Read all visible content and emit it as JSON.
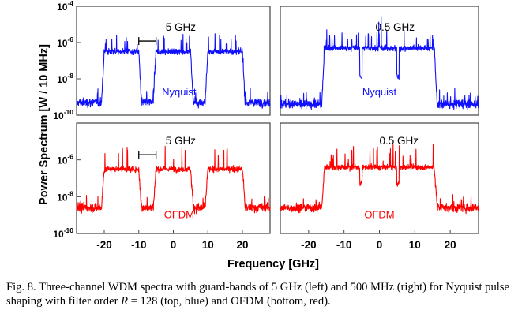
{
  "figure": {
    "ylabel": "Power Spectrum [W / 10 MHz]",
    "xlabel": "Frequency [GHz]",
    "ytick_labels": [
      {
        "base": "10",
        "exp": "-4"
      },
      {
        "base": "10",
        "exp": "-6"
      },
      {
        "base": "10",
        "exp": "-8"
      },
      {
        "base": "10",
        "exp": "-10"
      }
    ],
    "xtick_labels": [
      "-20",
      "-10",
      "0",
      "10",
      "20"
    ]
  },
  "chart_data": [
    {
      "type": "line",
      "panel": "top-left",
      "color": "#1010ff",
      "label": "Nyquist",
      "guard_annotation": "5 GHz",
      "guard_band_ghz": 5,
      "xlim": [
        -28,
        28
      ],
      "ylim_log10": [
        -10,
        -4
      ],
      "yscale": "log",
      "channel_centers_ghz": [
        -15,
        0,
        15
      ],
      "channel_width_ghz": 10,
      "in_band_level_log10": -6.5,
      "noise_floor_log10": -9.3
    },
    {
      "type": "line",
      "panel": "top-right",
      "color": "#1010ff",
      "label": "Nyquist",
      "guard_annotation": "0.5 GHz",
      "guard_band_ghz": 0.5,
      "xlim": [
        -28,
        28
      ],
      "ylim_log10": [
        -10,
        -4
      ],
      "yscale": "log",
      "channel_centers_ghz": [
        -10.5,
        0,
        10.5
      ],
      "channel_width_ghz": 10,
      "in_band_level_log10": -6.3,
      "noise_floor_log10": -9.4
    },
    {
      "type": "line",
      "panel": "bottom-left",
      "color": "#ff0000",
      "label": "OFDM",
      "guard_annotation": "5 GHz",
      "guard_band_ghz": 5,
      "xlim": [
        -28,
        28
      ],
      "ylim_log10": [
        -10,
        -4
      ],
      "yscale": "log",
      "channel_centers_ghz": [
        -15,
        0,
        15
      ],
      "channel_width_ghz": 10,
      "in_band_level_log10": -6.5,
      "noise_floor_log10": -8.6
    },
    {
      "type": "line",
      "panel": "bottom-right",
      "color": "#ff0000",
      "label": "OFDM",
      "guard_annotation": "0.5 GHz",
      "guard_band_ghz": 0.5,
      "xlim": [
        -28,
        28
      ],
      "ylim_log10": [
        -10,
        -4
      ],
      "yscale": "log",
      "channel_centers_ghz": [
        -10.5,
        0,
        10.5
      ],
      "channel_width_ghz": 10,
      "in_band_level_log10": -6.4,
      "noise_floor_log10": -8.6
    }
  ],
  "caption": {
    "part1": "Fig. 8. Three-channel WDM spectra with guard-bands of 5 GHz (left) and 500 MHz (right) for Nyquist pulse shaping with filter order ",
    "var": "R",
    "part2": " = 128 (top, blue) and OFDM (bottom, red)."
  }
}
